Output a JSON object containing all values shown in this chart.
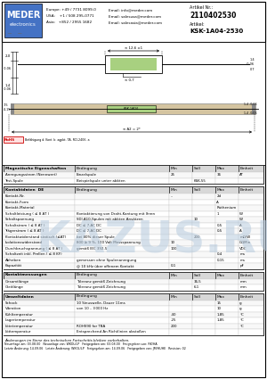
{
  "title": "KSK-1A04-2530",
  "article_nr": "2110402530",
  "bg_color": "#ffffff",
  "header_blue": "#4472c4",
  "watermark_color": "#b8ccdf",
  "diagram_green": "#a8d080",
  "diagram_beige": "#d4c4a0",
  "header": {
    "phone_europe": "Europe: +49 / 7731 8099-0",
    "phone_usa": "USA:    +1 / 508 295-0771",
    "phone_asia": "Asia:   +852 / 2955 1682",
    "email1": "Email: info@meder.com",
    "email2": "Email: salesusa@meder.com",
    "email3": "Email: salesasia@meder.com",
    "artikel_nr_label": "Artikel Nr.:",
    "artikel_label": "Artikel:"
  },
  "rohs_text": "Befähigung d. Kont. b. agpbt. TA. RCI-2406. a",
  "mag_header": [
    "Magnetische Eigenschaften",
    "Bedingung",
    "Min",
    "Soll",
    "Max",
    "Einheit"
  ],
  "mag_col_w": [
    68,
    90,
    22,
    22,
    22,
    24
  ],
  "mag_rows": [
    [
      "Anregungsstrom (Nennwert)",
      "Einzelspule",
      "25",
      "",
      "36",
      "AT"
    ],
    [
      "Test-Spule",
      "Beispielspule unter abkten",
      "",
      "KSK-55",
      "",
      ""
    ]
  ],
  "kd_header": [
    "Kontaktdaten  DE",
    "Bedingung",
    "Min",
    "Soll",
    "Max",
    "Einheit"
  ],
  "kd_col_w": [
    68,
    90,
    22,
    22,
    22,
    24
  ],
  "kd_rows": [
    [
      "Kontakt-Nr.",
      "",
      "–",
      "",
      "2d",
      ""
    ],
    [
      "Kontakt-Form",
      "",
      "",
      "",
      "A",
      ""
    ],
    [
      "Kontakt-Material",
      "",
      "",
      "",
      "Ruthenium",
      ""
    ],
    [
      "Schaltleistung ( ≤ 8 AT )",
      "Kontaktierung von Draht-Kontung mit Ihren",
      "",
      "",
      "1",
      "W"
    ],
    [
      "Schaltspannung",
      "SDI.A10-Spulen mit abkten Ansätzen",
      "",
      "10",
      "",
      "W"
    ],
    [
      "Schaltstrom ( ≤ 8 AT )",
      "DC ≤ 7-AC DC",
      "",
      "",
      "0,5",
      "A"
    ],
    [
      "Trägerstrom ( ≤ 8 AT )",
      "DC ≤ 7-AC DC",
      "",
      "",
      "0,5",
      "A"
    ],
    [
      "Kontaktwiderstand statisch (≤AT)",
      "bei 80% dieser Spule",
      "",
      "200",
      "",
      "mΩ/W"
    ],
    [
      "Isolationswiderstand",
      "800 ≥ 9 %, 100 Volt Messspannung",
      "10",
      "",
      "",
      "GΩMin"
    ],
    [
      "Durchbruchspannung ( ≤ 8 AT )",
      "gemäß IEC 392-5",
      "100",
      "",
      "",
      "VDC"
    ],
    [
      "Schaltzeit inkl. Prellen ( ≤ 8 KF)",
      "",
      "",
      "",
      "0,4",
      "ms"
    ],
    [
      "Abheben",
      "gemessen ohne Spulenanregung",
      "",
      "",
      "0,15",
      "ms"
    ],
    [
      "Kapazität",
      "@ 10 kHz über offenem Kontakt",
      "0,1",
      "",
      "",
      "pF"
    ]
  ],
  "km_header": [
    "Kontaktmessungen",
    "Bedingung",
    "Min",
    "Soll",
    "Max",
    "Einheit"
  ],
  "km_col_w": [
    68,
    90,
    22,
    22,
    22,
    24
  ],
  "km_rows": [
    [
      "Gesamtlänge",
      "Toleranz gemäß Zeichnung",
      "",
      "36,5",
      "",
      "mm"
    ],
    [
      "Gleitlänge",
      "Toleranz gemäß Zeichnung",
      "",
      "6,1",
      "",
      "mm"
    ]
  ],
  "uw_header": [
    "Umweltdaten",
    "Bedingung",
    "Min",
    "Soll",
    "Max",
    "Einheit"
  ],
  "uw_col_w": [
    68,
    90,
    22,
    22,
    22,
    24
  ],
  "uw_rows": [
    [
      "Schock",
      "10 Sinuswelle, Dauer 11ms",
      "",
      "",
      "15",
      "g"
    ],
    [
      "Vibration",
      "von 10 – 3 000 Hz",
      "",
      "",
      "10",
      "g"
    ],
    [
      "Kühltemperatur",
      "",
      "-40",
      "",
      "1,85",
      "°C"
    ],
    [
      "Lagertemperatur",
      "",
      "-25",
      "",
      "1,85",
      "°C"
    ],
    [
      "Lötetemperatur",
      "ROHS90 for TBA",
      "200",
      "",
      "",
      "°C"
    ],
    [
      "Löttemperatur",
      "Entsprechend An Richtlinien abstoßen",
      "",
      "",
      "",
      ""
    ]
  ],
  "footer_line1": "Änderungen im Sinne des technischen Fortschritts bleiben vorbehalten.",
  "footer_line2": "Neuanlage am: 03.08.00   Neuanlage von: WKOL/LP   Freigegeben am: 03.08.00   Freigegeben von: RK/HA",
  "footer_line3": "Letzte Änderung: 14.09.06   Letzte Änderung: WKOL/LP   Freigegeben am: 14.09.06   Freigegeben von: JM/HUHE   Revision: 02"
}
